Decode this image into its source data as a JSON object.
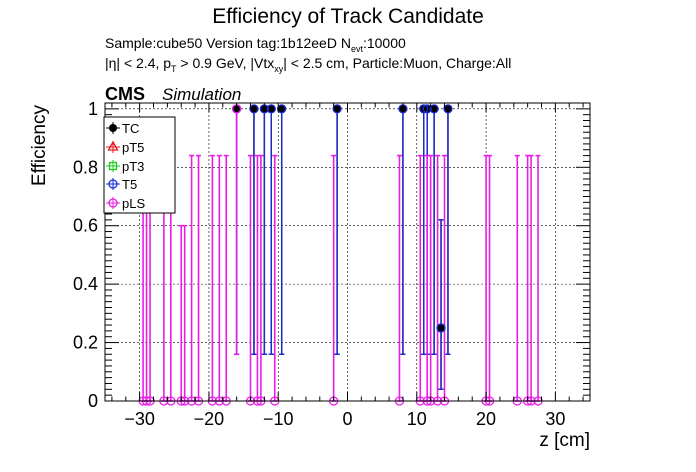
{
  "chart_data": {
    "type": "scatter",
    "title": "Efficiency of Track Candidate",
    "subtitle": {
      "line1_a": "Sample:cube50   Version tag:1b12eeD  N",
      "line1_sub": "evt",
      "line1_b": ":10000",
      "line2_a": "|η| < 2.4, p",
      "line2_sub1": "T",
      "line2_b": " > 0.9 GeV, |Vtx",
      "line2_sub2": "xy",
      "line2_c": "| < 2.5 cm, Particle:Muon, Charge:All"
    },
    "cms_label": "CMS",
    "sim_label": "Simulation",
    "xlabel": "z [cm]",
    "ylabel": "Efficiency",
    "xlim": [
      -35,
      35
    ],
    "ylim": [
      0,
      1.02
    ],
    "xticks": [
      -30,
      -20,
      -10,
      0,
      10,
      20,
      30
    ],
    "xtick_labels": [
      "−30",
      "−20",
      "−10",
      "0",
      "10",
      "20",
      "30"
    ],
    "yticks": [
      0,
      0.2,
      0.4,
      0.6,
      0.8,
      1
    ],
    "ytick_labels": [
      "0",
      "0.2",
      "0.4",
      "0.6",
      "0.8",
      "1"
    ],
    "grid": true,
    "legend_position": "top-left",
    "series": [
      {
        "name": "TC",
        "color": "#000000",
        "marker": "circle-filled",
        "points": [
          {
            "x": -16,
            "y": 1,
            "lo": 0.16,
            "hi": 1
          },
          {
            "x": -13.5,
            "y": 1,
            "lo": 0.16,
            "hi": 1
          },
          {
            "x": -12,
            "y": 1,
            "lo": 0.16,
            "hi": 1
          },
          {
            "x": -11,
            "y": 1,
            "lo": 0.16,
            "hi": 1
          },
          {
            "x": -9.5,
            "y": 1,
            "lo": 0.16,
            "hi": 1
          },
          {
            "x": -1.5,
            "y": 1,
            "lo": 0.16,
            "hi": 1
          },
          {
            "x": 8,
            "y": 1,
            "lo": 0.16,
            "hi": 1
          },
          {
            "x": 11,
            "y": 1,
            "lo": 0.16,
            "hi": 1
          },
          {
            "x": 11.5,
            "y": 1,
            "lo": 0.16,
            "hi": 1
          },
          {
            "x": 12.5,
            "y": 1,
            "lo": 0.16,
            "hi": 1
          },
          {
            "x": 14.5,
            "y": 1,
            "lo": 0.16,
            "hi": 1
          },
          {
            "x": 13.5,
            "y": 0.25,
            "lo": 0.04,
            "hi": 0.62
          }
        ]
      },
      {
        "name": "pT5",
        "color": "#e8161b",
        "marker": "triangle-open",
        "points": []
      },
      {
        "name": "pT3",
        "color": "#18cc18",
        "marker": "square-open",
        "points": []
      },
      {
        "name": "T5",
        "color": "#1c2bd8",
        "marker": "circle-open",
        "points": [
          {
            "x": -16,
            "y": 1,
            "lo": 0.16,
            "hi": 1
          },
          {
            "x": -13.5,
            "y": 1,
            "lo": 0.16,
            "hi": 1
          },
          {
            "x": -12,
            "y": 1,
            "lo": 0.16,
            "hi": 1
          },
          {
            "x": -11,
            "y": 1,
            "lo": 0.16,
            "hi": 1
          },
          {
            "x": -9.5,
            "y": 1,
            "lo": 0.16,
            "hi": 1
          },
          {
            "x": -1.5,
            "y": 1,
            "lo": 0.16,
            "hi": 1
          },
          {
            "x": 8,
            "y": 1,
            "lo": 0.16,
            "hi": 1
          },
          {
            "x": 11,
            "y": 1,
            "lo": 0.16,
            "hi": 1
          },
          {
            "x": 11.5,
            "y": 1,
            "lo": 0.16,
            "hi": 1
          },
          {
            "x": 12.5,
            "y": 1,
            "lo": 0.16,
            "hi": 1
          },
          {
            "x": 14.5,
            "y": 1,
            "lo": 0.16,
            "hi": 1
          },
          {
            "x": 13.5,
            "y": 0.25,
            "lo": 0.04,
            "hi": 0.62
          }
        ]
      },
      {
        "name": "pLS",
        "color": "#e81ee8",
        "marker": "circle-open",
        "points": [
          {
            "x": -29.5,
            "y": 0,
            "lo": 0,
            "hi": 0.84
          },
          {
            "x": -29,
            "y": 0,
            "lo": 0,
            "hi": 0.84
          },
          {
            "x": -28.5,
            "y": 0,
            "lo": 0,
            "hi": 0.84
          },
          {
            "x": -26.5,
            "y": 0,
            "lo": 0,
            "hi": 0.84
          },
          {
            "x": -25.5,
            "y": 0,
            "lo": 0,
            "hi": 0.84
          },
          {
            "x": -24,
            "y": 0,
            "lo": 0,
            "hi": 0.6
          },
          {
            "x": -23.5,
            "y": 0,
            "lo": 0,
            "hi": 0.6
          },
          {
            "x": -22.5,
            "y": 0,
            "lo": 0,
            "hi": 0.84
          },
          {
            "x": -21.5,
            "y": 0,
            "lo": 0,
            "hi": 0.84
          },
          {
            "x": -19.5,
            "y": 0,
            "lo": 0,
            "hi": 0.84
          },
          {
            "x": -18.5,
            "y": 0,
            "lo": 0,
            "hi": 0.84
          },
          {
            "x": -17.5,
            "y": 0,
            "lo": 0,
            "hi": 0.84
          },
          {
            "x": -16,
            "y": 1,
            "lo": 0.16,
            "hi": 1
          },
          {
            "x": -14,
            "y": 0,
            "lo": 0,
            "hi": 0.84
          },
          {
            "x": -13,
            "y": 0,
            "lo": 0,
            "hi": 0.84
          },
          {
            "x": -12.5,
            "y": 0,
            "lo": 0,
            "hi": 0.84
          },
          {
            "x": -10.5,
            "y": 0,
            "lo": 0,
            "hi": 0.84
          },
          {
            "x": -2,
            "y": 0,
            "lo": 0,
            "hi": 0.84
          },
          {
            "x": 7.5,
            "y": 0,
            "lo": 0,
            "hi": 0.84
          },
          {
            "x": 10.5,
            "y": 0,
            "lo": 0,
            "hi": 0.84
          },
          {
            "x": 11.5,
            "y": 0,
            "lo": 0,
            "hi": 0.84
          },
          {
            "x": 12,
            "y": 0,
            "lo": 0,
            "hi": 0.84
          },
          {
            "x": 13,
            "y": 0,
            "lo": 0,
            "hi": 0.84
          },
          {
            "x": 14,
            "y": 0,
            "lo": 0,
            "hi": 0.84
          },
          {
            "x": 20,
            "y": 0,
            "lo": 0,
            "hi": 0.84
          },
          {
            "x": 20.5,
            "y": 0,
            "lo": 0,
            "hi": 0.84
          },
          {
            "x": 24.5,
            "y": 0,
            "lo": 0,
            "hi": 0.84
          },
          {
            "x": 26,
            "y": 0,
            "lo": 0,
            "hi": 0.84
          },
          {
            "x": 26.5,
            "y": 0,
            "lo": 0,
            "hi": 0.84
          },
          {
            "x": 27.5,
            "y": 0,
            "lo": 0,
            "hi": 0.84
          }
        ]
      }
    ]
  }
}
